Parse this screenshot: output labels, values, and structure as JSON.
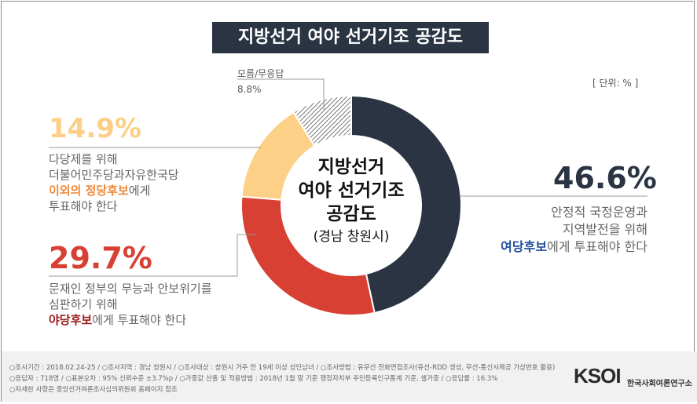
{
  "title": "지방선거 여야 선거기조 공감도",
  "unit": "[ 단위: % ]",
  "center": {
    "line1": "지방선거",
    "line2": "여야 선거기조",
    "line3": "공감도",
    "line4": "(경남 창원시)"
  },
  "labels": {
    "a": {
      "pct": "46.6%",
      "line1": "안정적 국정운영과",
      "line2": "지역발전을 위해",
      "highlight": "여당후보",
      "rest": "에게 투표해야 한다"
    },
    "b": {
      "pct": "29.7%",
      "line1": "문재인 정부의 무능과 안보위기를",
      "line2": "심판하기 위해",
      "highlight": "야당후보",
      "rest": "에게 투표해야 한다"
    },
    "c": {
      "pct": "14.9%",
      "line1": "다당제를 위해",
      "line2": "더불어민주당과자유한국당",
      "highlight": "이외의 정당후보",
      "rest": "에게",
      "line4": "투표해야 한다"
    },
    "d": {
      "name": "모름/무응답",
      "pct": "8.8%"
    }
  },
  "colors": {
    "a": "#2b3443",
    "b": "#d84034",
    "c": "#fdd088",
    "d": "#aaaaaa",
    "hl_a": "#1f4e9a",
    "hl_b": "#9b1b1b",
    "hl_c": "#f08a3a"
  },
  "chart_data": {
    "type": "pie",
    "title": "지방선거 여야 선거기조 공감도",
    "categories": [
      "안정적 국정운영과 지역발전을 위해 여당후보에게 투표해야 한다",
      "문재인 정부의 무능과 안보위기를 심판하기 위해 야당후보에게 투표해야 한다",
      "다당제를 위해 더불어민주당과자유한국당 이외의 정당후보에게 투표해야 한다",
      "모름/무응답"
    ],
    "values": [
      46.6,
      29.7,
      14.9,
      8.8
    ],
    "unit": "%"
  },
  "footer": {
    "line1": "○조사기간 : 2018.02.24-25  / ○조사지역 : 경남 창원시 / ○조사대상 : 창원시 거주 만 19세 이상 성인남녀 / ○조사방법 : 유무선 전화면접조사(유선-RDD 생성, 무선-통신사제공 가상번호 활용)",
    "line2": "○응답자 : 718명 / ○표본오차 : 95% 신뢰수준 ±3.7%p / ○가중값 산출 및 적용방법 : 2018년 1월 말 기준 행정자치부 주민등록인구통계 기준, 셀가중 / ○응답률 : 16.3%",
    "line3": "○자세한 사항은 중앙선거여론조사심의위원회 홈페이지 참조",
    "logo": "KSOI",
    "logo_sub": "한국사회여론연구소"
  }
}
